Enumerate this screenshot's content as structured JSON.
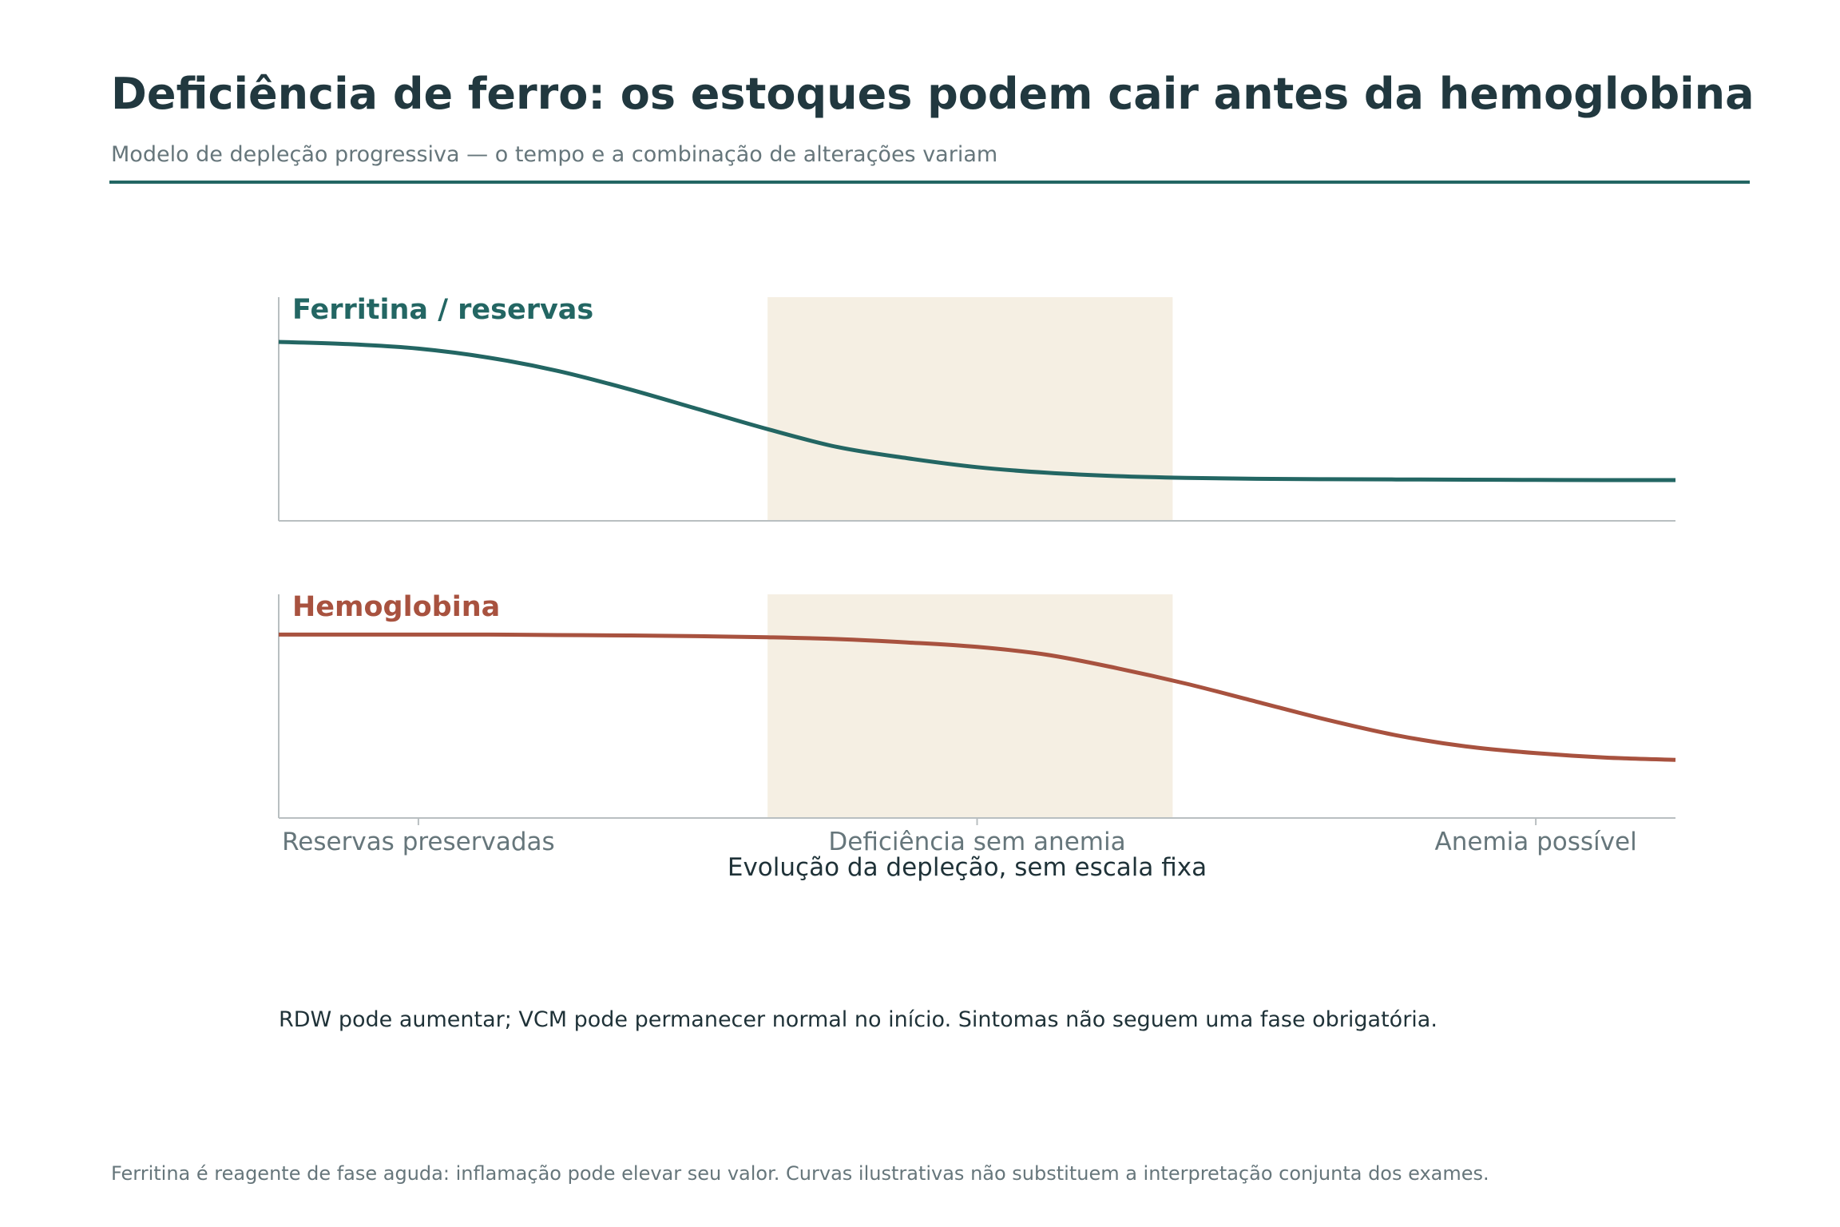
{
  "header": {
    "title": "Deficiência de ferro: os estoques podem cair antes da hemoglobina",
    "subtitle": "Modelo de depleção progressiva — o tempo e a combinação de alterações variam"
  },
  "chart_data": {
    "type": "line",
    "xlabel": "Evolução da depleção, sem escala fixa",
    "tick_labels": [
      "Reservas preservadas",
      "Deficiência sem anemia",
      "Anemia possível"
    ],
    "tick_positions": [
      0.1,
      0.5,
      0.9
    ],
    "xlim": [
      0,
      1
    ],
    "ylim": [
      0,
      1
    ],
    "shaded_region": {
      "x": [
        0.35,
        0.64
      ],
      "color": "#f5efe3"
    },
    "series": [
      {
        "name": "Ferritina / reservas",
        "color": "#236663",
        "x": [
          0,
          0.05,
          0.1,
          0.15,
          0.2,
          0.25,
          0.3,
          0.35,
          0.4,
          0.45,
          0.5,
          0.55,
          0.6,
          0.65,
          0.7,
          0.75,
          0.8,
          0.85,
          0.9,
          0.95,
          1.0
        ],
        "y": [
          0.8,
          0.79,
          0.77,
          0.73,
          0.67,
          0.59,
          0.5,
          0.41,
          0.33,
          0.28,
          0.24,
          0.215,
          0.2,
          0.192,
          0.188,
          0.186,
          0.185,
          0.184,
          0.183,
          0.182,
          0.182
        ]
      },
      {
        "name": "Hemoglobina",
        "color": "#a8523f",
        "x": [
          0,
          0.05,
          0.1,
          0.15,
          0.2,
          0.25,
          0.3,
          0.35,
          0.4,
          0.45,
          0.5,
          0.55,
          0.6,
          0.65,
          0.7,
          0.75,
          0.8,
          0.85,
          0.9,
          0.95,
          1.0
        ],
        "y": [
          0.82,
          0.82,
          0.82,
          0.82,
          0.818,
          0.816,
          0.813,
          0.808,
          0.8,
          0.785,
          0.765,
          0.73,
          0.67,
          0.6,
          0.52,
          0.44,
          0.37,
          0.32,
          0.29,
          0.27,
          0.26
        ]
      }
    ]
  },
  "note": "RDW pode aumentar; VCM pode permanecer normal no início. Sintomas não seguem uma fase obrigatória.",
  "footnote": "Ferritina é reagente de fase aguda: inflamação pode elevar seu valor. Curvas ilustrativas não substituem a interpretação conjunta dos exames."
}
